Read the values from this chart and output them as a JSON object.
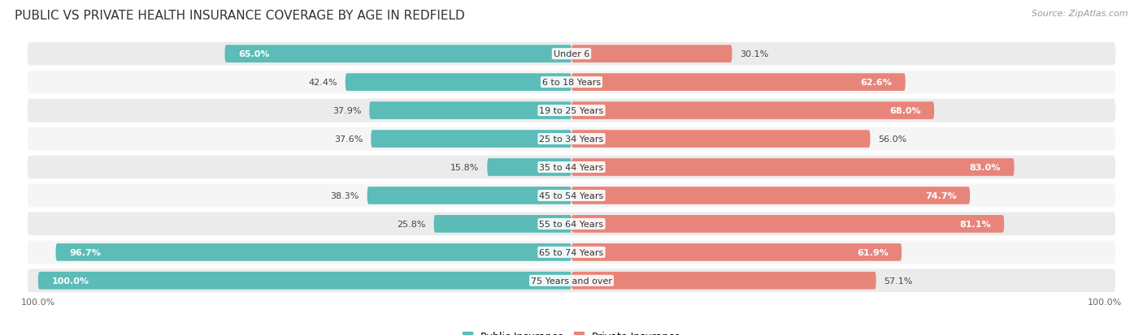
{
  "title": "PUBLIC VS PRIVATE HEALTH INSURANCE COVERAGE BY AGE IN REDFIELD",
  "source": "Source: ZipAtlas.com",
  "categories": [
    "Under 6",
    "6 to 18 Years",
    "19 to 25 Years",
    "25 to 34 Years",
    "35 to 44 Years",
    "45 to 54 Years",
    "55 to 64 Years",
    "65 to 74 Years",
    "75 Years and over"
  ],
  "public_values": [
    65.0,
    42.4,
    37.9,
    37.6,
    15.8,
    38.3,
    25.8,
    96.7,
    100.0
  ],
  "private_values": [
    30.1,
    62.6,
    68.0,
    56.0,
    83.0,
    74.7,
    81.1,
    61.9,
    57.1
  ],
  "public_color": "#5bbcb8",
  "private_color": "#e8857a",
  "row_bg_odd": "#ebebeb",
  "row_bg_even": "#f5f5f5",
  "max_value": 100.0,
  "bar_height": 0.62,
  "title_fontsize": 11,
  "tick_fontsize": 8,
  "value_fontsize": 8,
  "cat_fontsize": 8,
  "legend_fontsize": 9,
  "source_fontsize": 8
}
